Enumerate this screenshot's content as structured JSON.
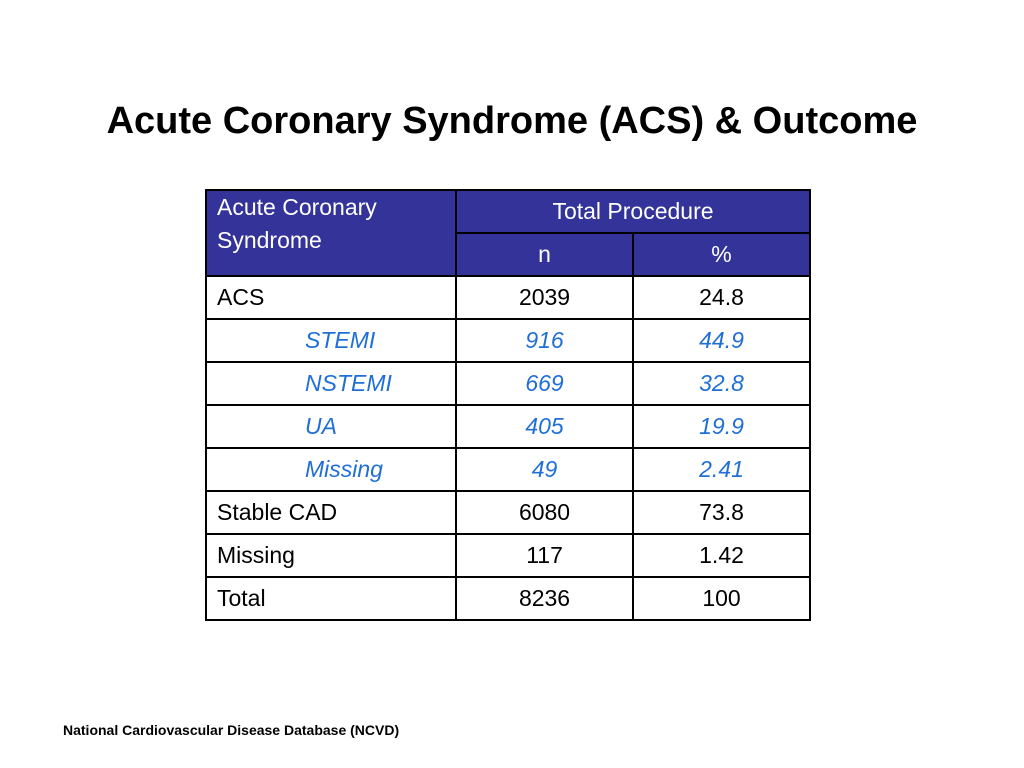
{
  "title": "Acute Coronary Syndrome (ACS) & Outcome",
  "table": {
    "row_header": "Acute Coronary Syndrome",
    "group_header": "Total Procedure",
    "sub_headers": [
      "n",
      "%"
    ],
    "rows": [
      {
        "label": "ACS",
        "n": "2039",
        "pct": "24.8",
        "subcategory": false
      },
      {
        "label": "STEMI",
        "n": "916",
        "pct": "44.9",
        "subcategory": true
      },
      {
        "label": "NSTEMI",
        "n": "669",
        "pct": "32.8",
        "subcategory": true
      },
      {
        "label": "UA",
        "n": "405",
        "pct": "19.9",
        "subcategory": true
      },
      {
        "label": "Missing",
        "n": "49",
        "pct": "2.41",
        "subcategory": true
      },
      {
        "label": "Stable CAD",
        "n": "6080",
        "pct": "73.8",
        "subcategory": false
      },
      {
        "label": "Missing",
        "n": "117",
        "pct": "1.42",
        "subcategory": false
      },
      {
        "label": "Total",
        "n": "8236",
        "pct": "100",
        "subcategory": false
      }
    ]
  },
  "footer": "National Cardiovascular Disease Database (NCVD)",
  "colors": {
    "header_background": "#333399",
    "header_text": "#ffffff",
    "subcategory_text": "#1f6fd6"
  }
}
